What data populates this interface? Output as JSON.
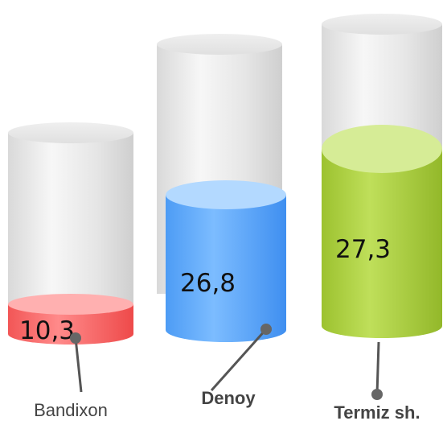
{
  "chart_data": {
    "type": "bar",
    "style": "3d-cylinder",
    "categories": [
      "Bandixon",
      "Denoy",
      "Termiz sh."
    ],
    "values": [
      10.3,
      26.8,
      27.3
    ],
    "value_labels": [
      "10,3",
      "26,8",
      "27,3"
    ],
    "colors": [
      "#ff6b6b",
      "#5aa8ff",
      "#a6cc3a"
    ],
    "title": "",
    "xlabel": "",
    "ylabel": "",
    "legend": "none",
    "grid": false
  }
}
